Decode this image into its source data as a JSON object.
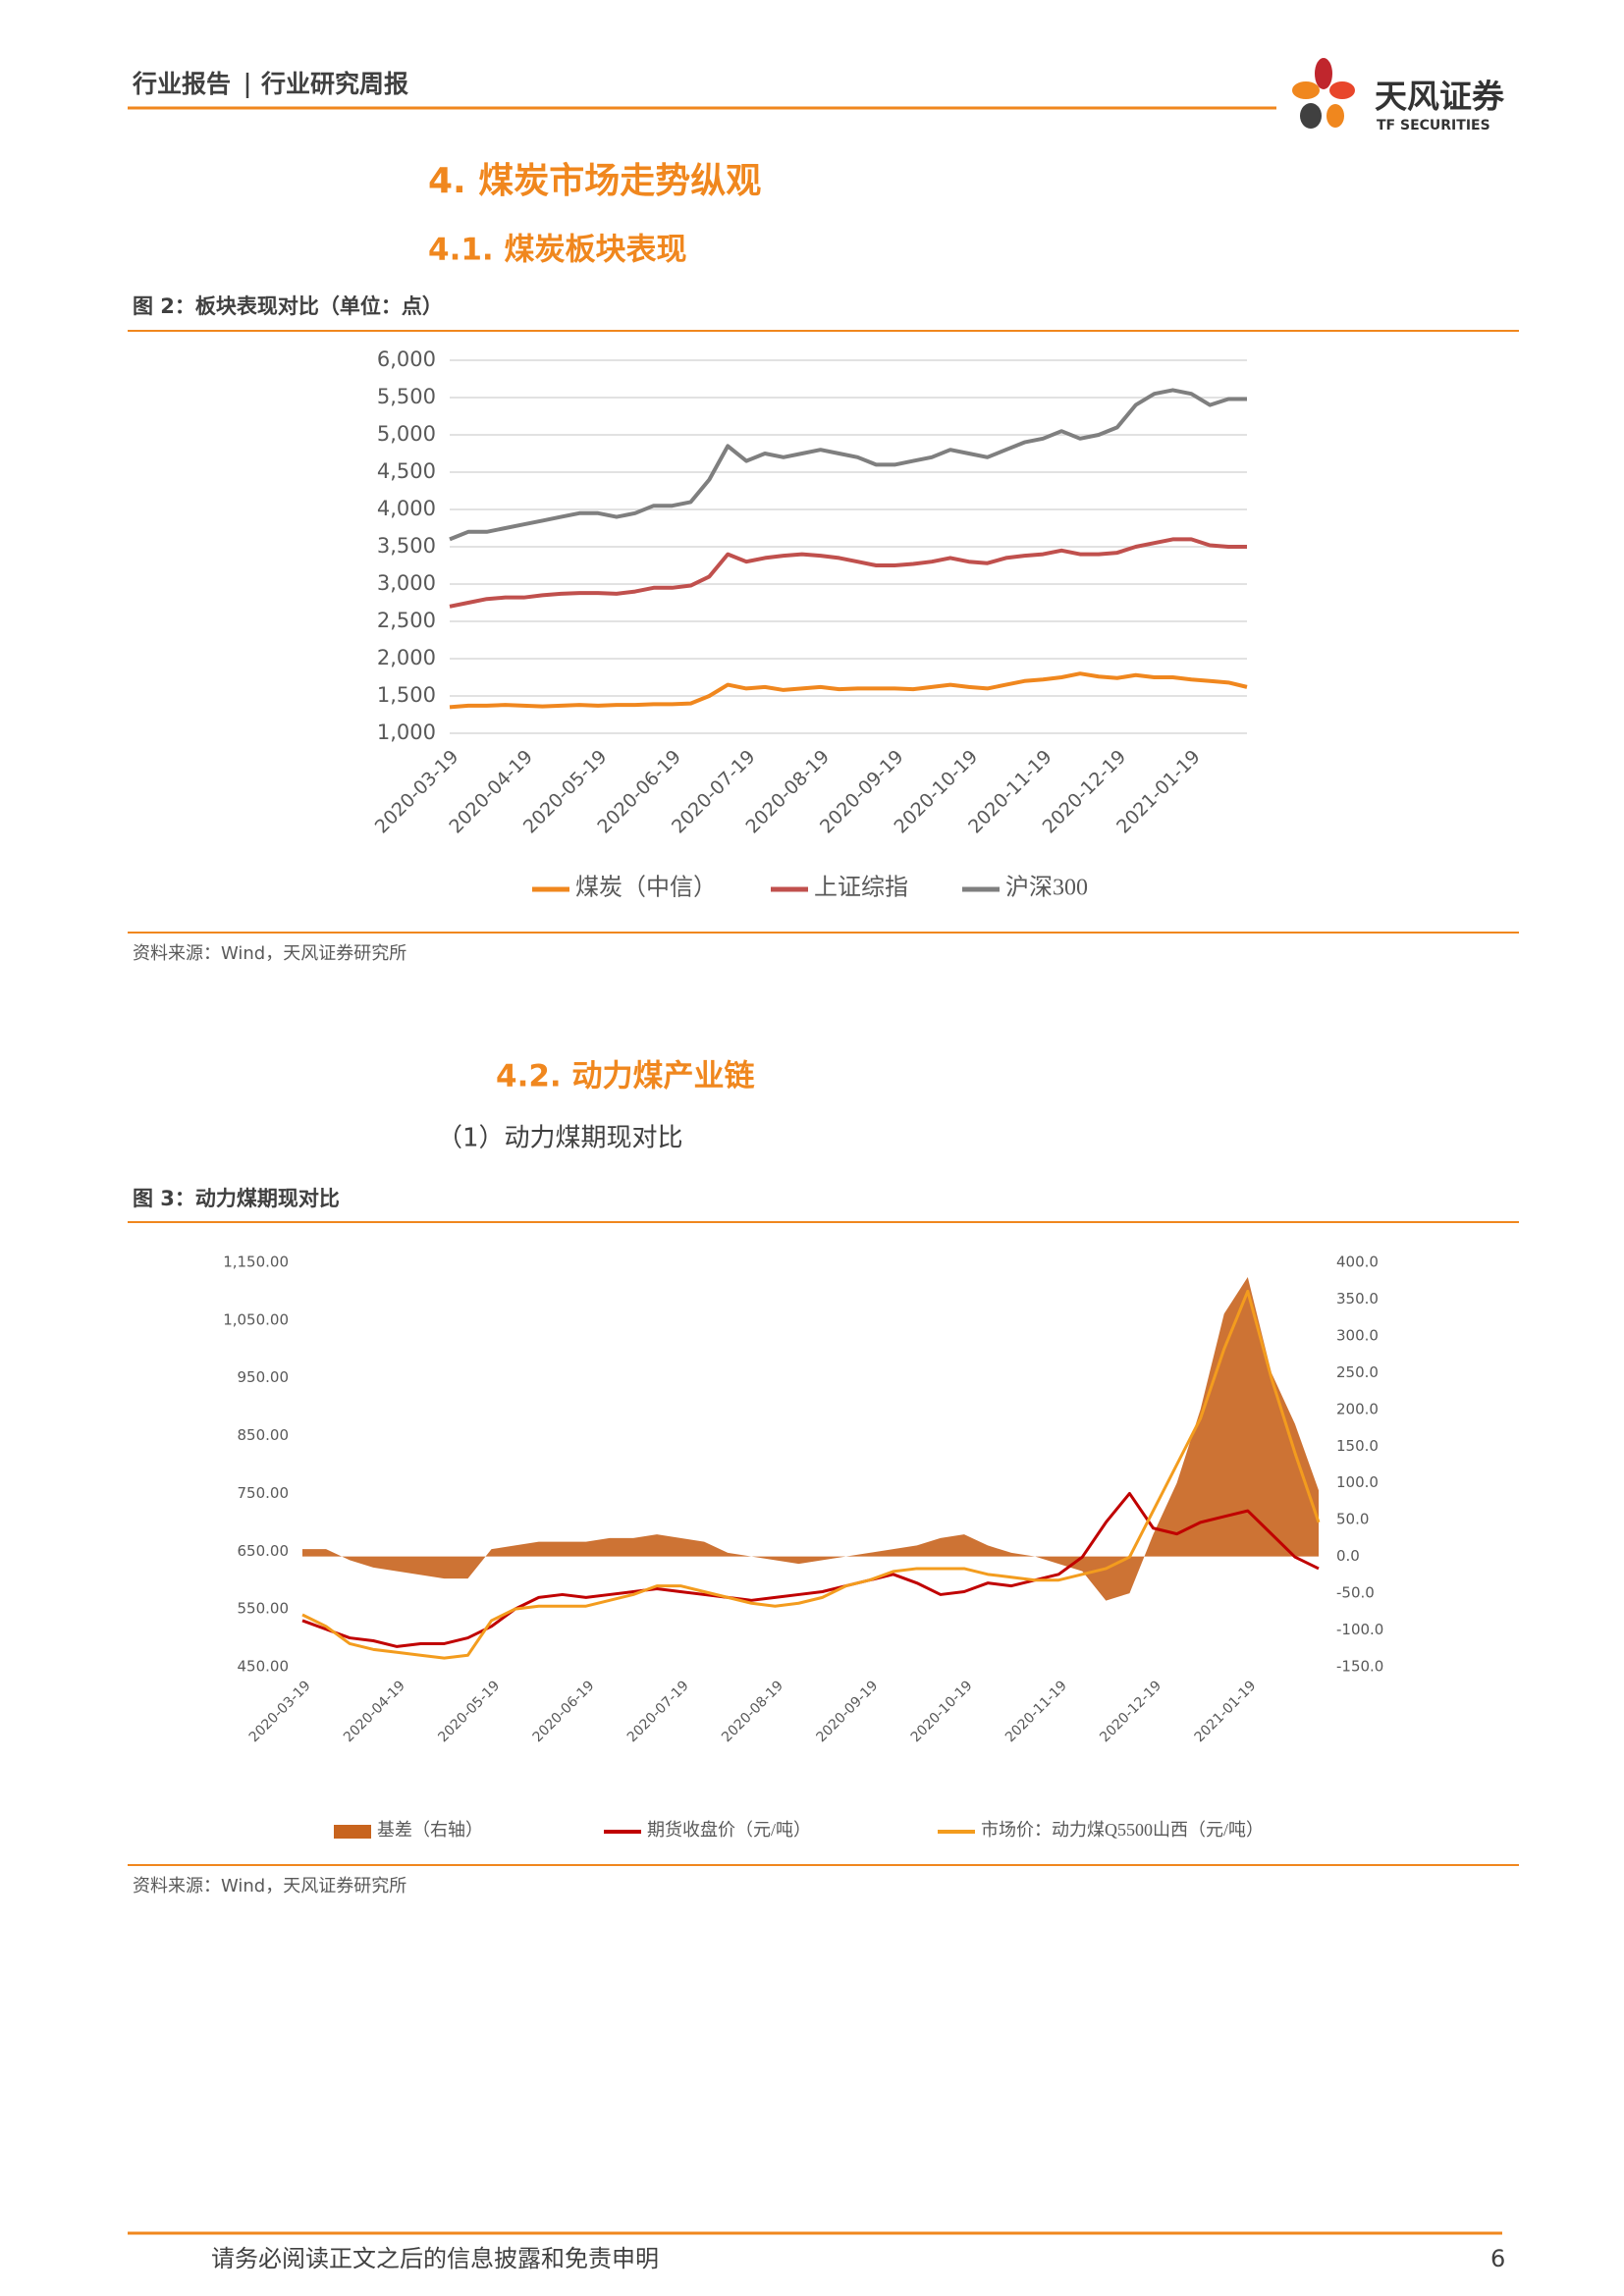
{
  "header": {
    "left": "行业报告",
    "right": "行业研究周报",
    "logo_cn": "天风证券",
    "logo_en": "TF SECURITIES"
  },
  "sections": [
    {
      "heading": "4. 煤炭市场走势纵观"
    },
    {
      "heading": "4.1. 煤炭板块表现"
    },
    {
      "heading": "4.2. 动力煤产业链"
    },
    {
      "heading": "（1）动力煤期现对比"
    }
  ],
  "figures": [
    {
      "caption": "图 2：板块表现对比（单位：点）",
      "source": "资料来源：Wind，天风证券研究所",
      "chart_data": {
        "type": "line",
        "categories": [
          "2020-03-19",
          null,
          null,
          null,
          "2020-04-19",
          null,
          null,
          null,
          "2020-05-19",
          null,
          null,
          null,
          "2020-06-19",
          null,
          null,
          null,
          "2020-07-19",
          null,
          null,
          null,
          "2020-08-19",
          null,
          null,
          null,
          "2020-09-19",
          null,
          null,
          null,
          "2020-10-19",
          null,
          null,
          null,
          "2020-11-19",
          null,
          null,
          null,
          "2020-12-19",
          null,
          null,
          null,
          "2021-01-19",
          null,
          null,
          null
        ],
        "series": [
          {
            "name": "煤炭（中信）",
            "color": "#f0871e",
            "values": [
              1350,
              1370,
              1370,
              1380,
              1370,
              1360,
              1370,
              1380,
              1370,
              1380,
              1380,
              1390,
              1390,
              1400,
              1500,
              1650,
              1600,
              1620,
              1580,
              1600,
              1620,
              1590,
              1600,
              1600,
              1600,
              1590,
              1620,
              1650,
              1620,
              1600,
              1650,
              1700,
              1720,
              1750,
              1800,
              1760,
              1740,
              1780,
              1750,
              1750,
              1720,
              1700,
              1680,
              1620
            ]
          },
          {
            "name": "上证综指",
            "color": "#c0504d",
            "values": [
              2700,
              2750,
              2800,
              2820,
              2820,
              2850,
              2870,
              2880,
              2880,
              2870,
              2900,
              2950,
              2950,
              2980,
              3100,
              3400,
              3300,
              3350,
              3380,
              3400,
              3380,
              3350,
              3300,
              3250,
              3250,
              3270,
              3300,
              3350,
              3300,
              3280,
              3350,
              3380,
              3400,
              3450,
              3400,
              3400,
              3420,
              3500,
              3550,
              3600,
              3600,
              3520,
              3500,
              3500
            ]
          },
          {
            "name": "沪深300",
            "color": "#7f7f7f",
            "values": [
              3600,
              3700,
              3700,
              3750,
              3800,
              3850,
              3900,
              3950,
              3950,
              3900,
              3950,
              4050,
              4050,
              4100,
              4400,
              4850,
              4650,
              4750,
              4700,
              4750,
              4800,
              4750,
              4700,
              4600,
              4600,
              4650,
              4700,
              4800,
              4750,
              4700,
              4800,
              4900,
              4950,
              5050,
              4950,
              5000,
              5100,
              5400,
              5550,
              5600,
              5550,
              5400,
              5480,
              5480
            ]
          }
        ],
        "ylim": [
          1000,
          6000
        ],
        "yticks": [
          {
            "value": 1000,
            "label": "1,000"
          },
          {
            "value": 1500,
            "label": "1,500"
          },
          {
            "value": 2000,
            "label": "2,000"
          },
          {
            "value": 2500,
            "label": "2,500"
          },
          {
            "value": 3000,
            "label": "3,000"
          },
          {
            "value": 3500,
            "label": "3,500"
          },
          {
            "value": 4000,
            "label": "4,000"
          },
          {
            "value": 4500,
            "label": "4,500"
          },
          {
            "value": 5000,
            "label": "5,000"
          },
          {
            "value": 5500,
            "label": "5,500"
          },
          {
            "value": 6000,
            "label": "6,000"
          }
        ],
        "grid": true,
        "legend": "bottom"
      }
    },
    {
      "caption": "图 3：动力煤期现对比",
      "source": "资料来源：Wind，天风证券研究所",
      "chart_data": {
        "type": "line",
        "categories": [
          "2020-03-19",
          null,
          null,
          null,
          "2020-04-19",
          null,
          null,
          null,
          "2020-05-19",
          null,
          null,
          null,
          "2020-06-19",
          null,
          null,
          null,
          "2020-07-19",
          null,
          null,
          null,
          "2020-08-19",
          null,
          null,
          null,
          "2020-09-19",
          null,
          null,
          null,
          "2020-10-19",
          null,
          null,
          null,
          "2020-11-19",
          null,
          null,
          null,
          "2020-12-19",
          null,
          null,
          null,
          "2021-01-19",
          null,
          null,
          null
        ],
        "series": [
          {
            "name": "基差（右轴）",
            "type": "area",
            "axis": "y2",
            "color": "#c8641e",
            "values": [
              10,
              10,
              -5,
              -15,
              -20,
              -25,
              -30,
              -30,
              10,
              15,
              20,
              20,
              20,
              25,
              25,
              30,
              25,
              20,
              5,
              0,
              -5,
              -10,
              -5,
              0,
              5,
              10,
              15,
              25,
              30,
              15,
              5,
              0,
              -10,
              -20,
              -60,
              -50,
              30,
              100,
              200,
              330,
              380,
              250,
              180,
              90
            ]
          },
          {
            "name": "期货收盘价（元/吨）",
            "type": "line",
            "color": "#c00000",
            "values": [
              530,
              515,
              500,
              495,
              485,
              490,
              490,
              500,
              520,
              550,
              570,
              575,
              570,
              575,
              580,
              585,
              580,
              575,
              570,
              565,
              570,
              575,
              580,
              590,
              600,
              610,
              595,
              575,
              580,
              595,
              590,
              600,
              610,
              640,
              700,
              750,
              690,
              680,
              700,
              710,
              720,
              680,
              640,
              620
            ]
          },
          {
            "name": "市场价：动力煤Q5500山西（元/吨）",
            "type": "line",
            "color": "#f39c1e",
            "values": [
              540,
              520,
              490,
              480,
              475,
              470,
              465,
              470,
              530,
              550,
              555,
              555,
              555,
              565,
              575,
              590,
              590,
              580,
              570,
              560,
              555,
              560,
              570,
              590,
              600,
              615,
              620,
              620,
              620,
              610,
              605,
              600,
              600,
              610,
              620,
              640,
              720,
              800,
              880,
              1000,
              1100,
              950,
              820,
              700
            ]
          }
        ],
        "ylim": [
          450,
          1150
        ],
        "yticks": [
          {
            "value": 450,
            "label": "450.00"
          },
          {
            "value": 550,
            "label": "550.00"
          },
          {
            "value": 650,
            "label": "650.00"
          },
          {
            "value": 750,
            "label": "750.00"
          },
          {
            "value": 850,
            "label": "850.00"
          },
          {
            "value": 950,
            "label": "950.00"
          },
          {
            "value": 1050,
            "label": "1,050.00"
          },
          {
            "value": 1150,
            "label": "1,150.00"
          }
        ],
        "y2lim": [
          -150,
          400
        ],
        "y2ticks": [
          {
            "value": -150,
            "label": "-150.0"
          },
          {
            "value": -100,
            "label": "-100.0"
          },
          {
            "value": -50,
            "label": "-50.0"
          },
          {
            "value": 0,
            "label": "0.0"
          },
          {
            "value": 50,
            "label": "50.0"
          },
          {
            "value": 100,
            "label": "100.0"
          },
          {
            "value": 150,
            "label": "150.0"
          },
          {
            "value": 200,
            "label": "200.0"
          },
          {
            "value": 250,
            "label": "250.0"
          },
          {
            "value": 300,
            "label": "300.0"
          },
          {
            "value": 350,
            "label": "350.0"
          },
          {
            "value": 400,
            "label": "400.0"
          }
        ],
        "grid": false,
        "legend": "bottom"
      }
    }
  ],
  "footer": {
    "disclaimer": "请务必阅读正文之后的信息披露和免责申明",
    "page": "6"
  }
}
